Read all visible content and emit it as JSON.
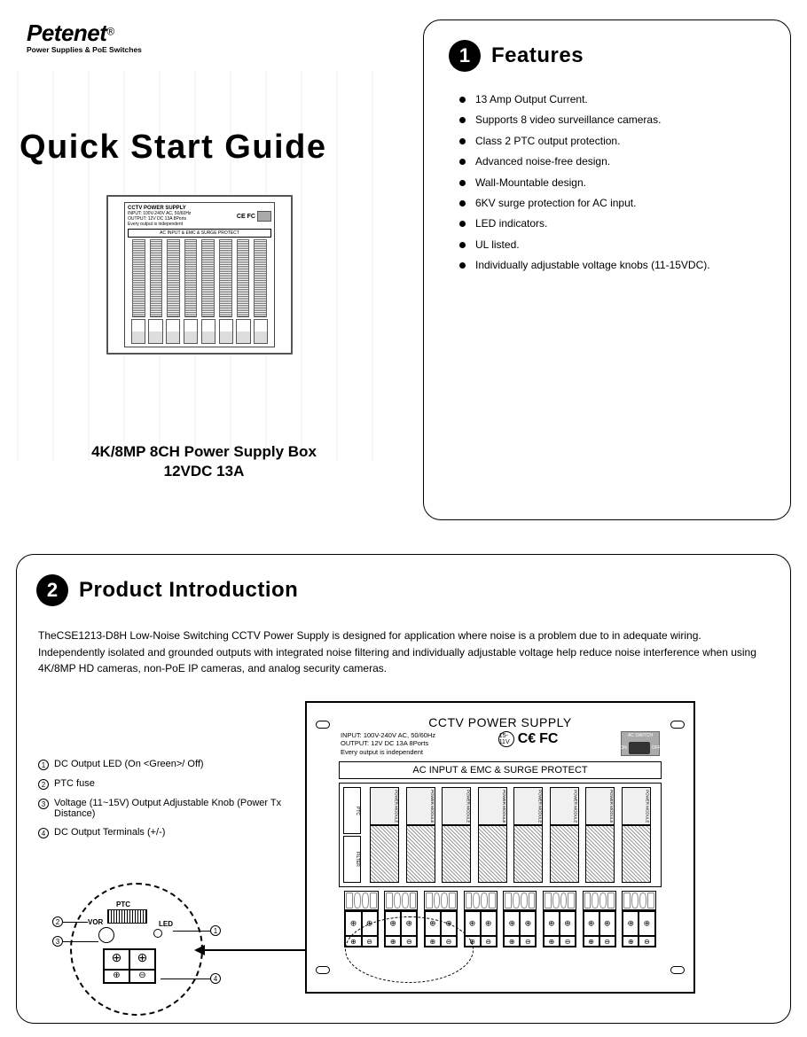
{
  "brand": {
    "name": "Petenet",
    "registered": "®",
    "tagline": "Power Supplies & PoE Switches"
  },
  "title": "Quick Start Guide",
  "subtitle_line1": "4K/8MP 8CH Power Supply Box",
  "subtitle_line2": "12VDC 13A",
  "section1": {
    "number": "1",
    "title": "Features",
    "items": [
      "13 Amp Output Current.",
      "Supports 8 video surveillance cameras.",
      "Class 2 PTC output protection.",
      "Advanced noise-free design.",
      "Wall-Mountable design.",
      "6KV surge protection for AC input.",
      "LED indicators.",
      "UL listed.",
      "Individually adjustable voltage knobs (11-15VDC)."
    ]
  },
  "section2": {
    "number": "2",
    "title": "Product Introduction",
    "paragraph": "TheCSE1213-D8H Low-Noise Switching CCTV Power Supply is designed for application where noise is a problem due to in adequate wiring. Independently isolated and grounded outputs with integrated noise filtering and individually adjustable voltage help reduce noise interference when using 4K/8MP HD cameras, non-PoE IP cameras, and analog security cameras.",
    "callouts": [
      {
        "n": "①",
        "text": "DC Output LED (On <Green>/ Off)"
      },
      {
        "n": "②",
        "text": "PTC fuse"
      },
      {
        "n": "③",
        "text": "Voltage (11~15V) Output Adjustable Knob (Power Tx Distance)"
      },
      {
        "n": "④",
        "text": "DC Output Terminals (+/-)"
      }
    ],
    "detail_labels": {
      "ptc": "PTC",
      "vor": "VOR",
      "led": "LED"
    }
  },
  "device": {
    "title": "CCTV POWER SUPPLY",
    "spec_line1": "INPUT: 100V-240V AC, 50/60Hz",
    "spec_line2": "OUTPUT: 12V DC 13A  8Ports",
    "spec_line3": "Every output is independent",
    "knob_range": "15-11V",
    "cert_ce": "CE",
    "cert_fc": "FC",
    "switch_label": "AC SWITCH",
    "switch_on": "ON",
    "switch_off": "OFF",
    "bar_label": "AC INPUT & EMC & SURGE PROTECT",
    "module_label": "POWER MODULE",
    "filter_a": "PTC",
    "filter_b": "FILTER",
    "terminal_plus": "⊕",
    "terminal_minus": "⊖",
    "channel_count": 8
  },
  "colors": {
    "text": "#000000",
    "background": "#ffffff",
    "border": "#000000",
    "switch_bg": "#aaaaaa",
    "faint": "#e8e8e8"
  }
}
